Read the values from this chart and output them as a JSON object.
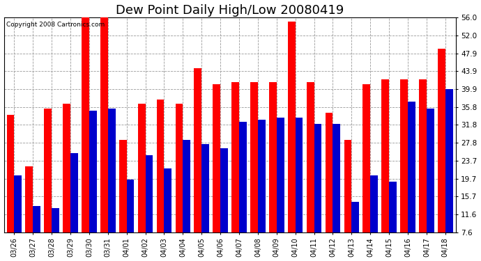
{
  "title": "Dew Point Daily High/Low 20080419",
  "copyright": "Copyright 2008 Cartronics.com",
  "dates": [
    "03/26",
    "03/27",
    "03/28",
    "03/29",
    "03/30",
    "03/31",
    "04/01",
    "04/02",
    "04/03",
    "04/04",
    "04/05",
    "04/06",
    "04/07",
    "04/08",
    "04/09",
    "04/10",
    "04/11",
    "04/12",
    "04/13",
    "04/14",
    "04/15",
    "04/16",
    "04/17",
    "04/18"
  ],
  "highs": [
    34.0,
    22.5,
    35.5,
    36.5,
    56.5,
    56.5,
    28.5,
    36.5,
    37.5,
    36.5,
    44.5,
    41.0,
    41.5,
    41.5,
    41.5,
    55.0,
    41.5,
    34.5,
    28.5,
    41.0,
    42.0,
    42.0,
    42.0,
    49.0
  ],
  "lows": [
    20.5,
    13.5,
    13.0,
    25.5,
    35.0,
    35.5,
    19.5,
    25.0,
    22.0,
    28.5,
    27.5,
    26.5,
    32.5,
    33.0,
    33.5,
    33.5,
    32.0,
    32.0,
    14.5,
    20.5,
    19.0,
    37.0,
    35.5,
    39.9
  ],
  "high_color": "#ff0000",
  "low_color": "#0000cc",
  "bg_color": "#ffffff",
  "plot_bg_color": "#ffffff",
  "grid_color": "#999999",
  "ymin": 7.6,
  "ymax": 56.0,
  "yticks": [
    7.6,
    11.6,
    15.7,
    19.7,
    23.7,
    27.8,
    31.8,
    35.8,
    39.9,
    43.9,
    47.9,
    52.0,
    56.0
  ],
  "title_fontsize": 13,
  "bar_width": 0.4
}
